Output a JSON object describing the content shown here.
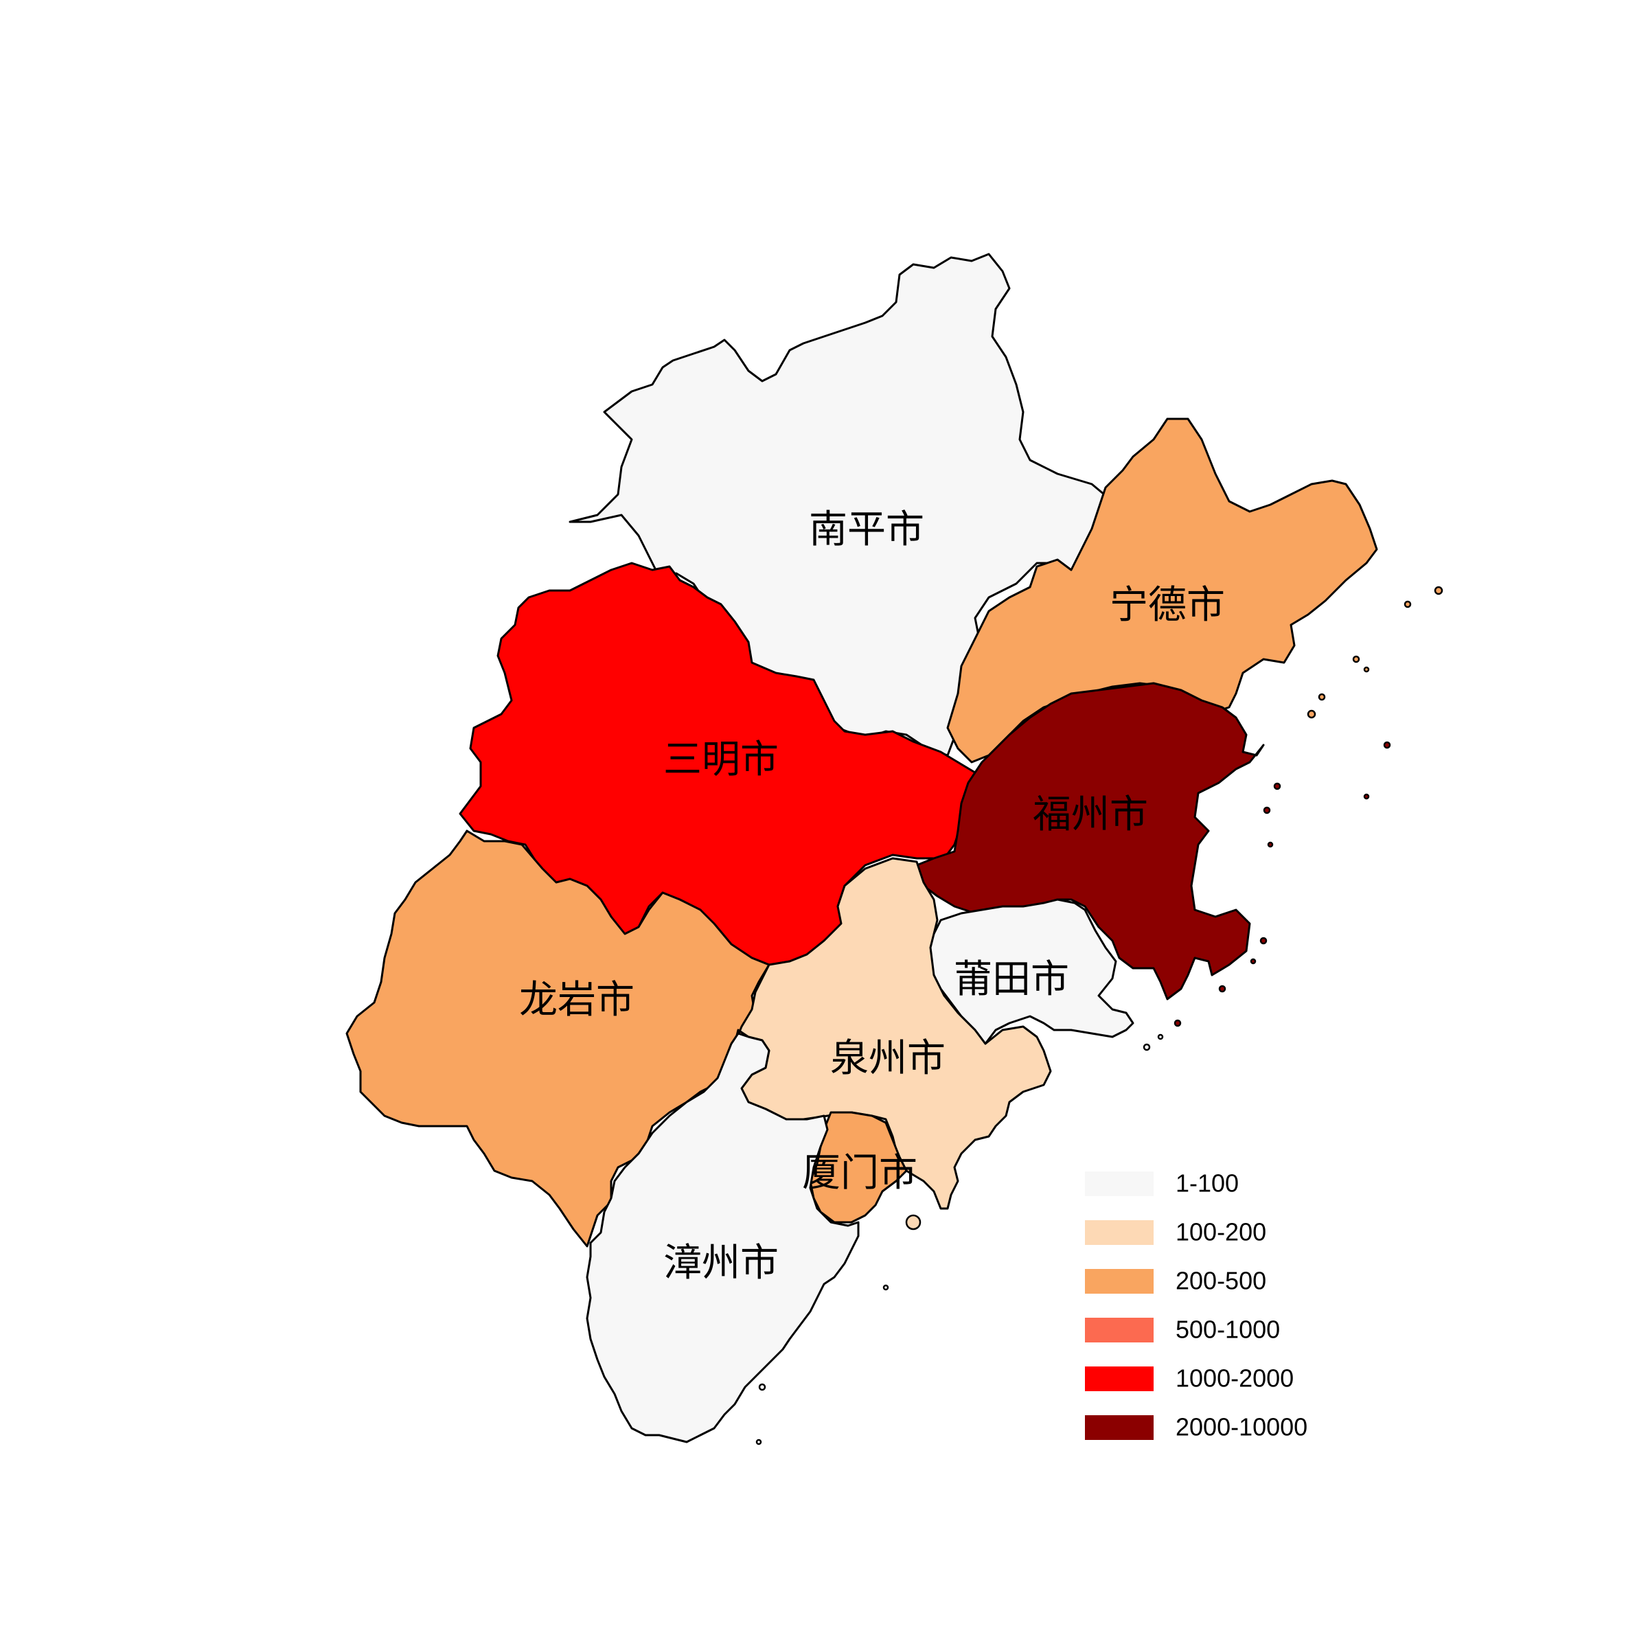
{
  "map": {
    "regions": [
      {
        "id": "nanping",
        "name": "南平市",
        "class": "1-100"
      },
      {
        "id": "ningde",
        "name": "宁德市",
        "class": "200-500"
      },
      {
        "id": "sanming",
        "name": "三明市",
        "class": "1000-2000"
      },
      {
        "id": "fuzhou",
        "name": "福州市",
        "class": "2000-10000"
      },
      {
        "id": "longyan",
        "name": "龙岩市",
        "class": "200-500"
      },
      {
        "id": "putian",
        "name": "莆田市",
        "class": "1-100"
      },
      {
        "id": "quanzhou",
        "name": "泉州市",
        "class": "100-200"
      },
      {
        "id": "xiamen",
        "name": "厦门市",
        "class": "200-500"
      },
      {
        "id": "zhangzhou",
        "name": "漳州市",
        "class": "1-100"
      }
    ]
  },
  "legend": {
    "items": [
      {
        "label": "1-100",
        "color": "#f7f7f7"
      },
      {
        "label": "100-200",
        "color": "#fdd9b5"
      },
      {
        "label": "200-500",
        "color": "#f9a560"
      },
      {
        "label": "500-1000",
        "color": "#fc6a50"
      },
      {
        "label": "1000-2000",
        "color": "#ff0000"
      },
      {
        "label": "2000-10000",
        "color": "#8b0000"
      }
    ]
  }
}
